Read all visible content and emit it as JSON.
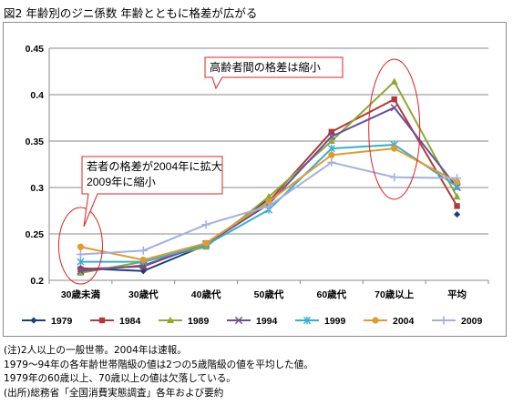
{
  "title": "図2 年齢別のジニ係数 年齢とともに格差が広がる",
  "chart_data": {
    "type": "line",
    "categories": [
      "30歳未満",
      "30歳代",
      "40歳代",
      "50歳代",
      "60歳代",
      "70歳以上",
      "平均"
    ],
    "ylim": [
      0.2,
      0.45
    ],
    "yticks": [
      "0.2",
      "0.25",
      "0.3",
      "0.35",
      "0.4",
      "0.45"
    ],
    "grid": true,
    "legend_position": "bottom",
    "series": [
      {
        "name": "1979",
        "color": "#1f3f7a",
        "marker": "diamond",
        "values": [
          0.213,
          0.21,
          0.238,
          0.288,
          null,
          null,
          0.271
        ]
      },
      {
        "name": "1984",
        "color": "#b03a3a",
        "marker": "square",
        "values": [
          0.212,
          0.215,
          0.24,
          0.285,
          0.36,
          0.395,
          0.28
        ]
      },
      {
        "name": "1989",
        "color": "#8ea832",
        "marker": "triangle",
        "values": [
          0.208,
          0.22,
          0.236,
          0.29,
          0.35,
          0.414,
          0.29
        ]
      },
      {
        "name": "1994",
        "color": "#6a4f9c",
        "marker": "x",
        "values": [
          0.21,
          0.216,
          0.239,
          0.282,
          0.355,
          0.386,
          0.3
        ]
      },
      {
        "name": "1999",
        "color": "#3aaed0",
        "marker": "asterisk",
        "values": [
          0.22,
          0.22,
          0.238,
          0.276,
          0.342,
          0.346,
          0.301
        ]
      },
      {
        "name": "2004",
        "color": "#e39a2a",
        "marker": "circle",
        "values": [
          0.236,
          0.222,
          0.24,
          0.285,
          0.335,
          0.342,
          0.306
        ]
      },
      {
        "name": "2009",
        "color": "#a3b0de",
        "marker": "plus",
        "values": [
          0.228,
          0.232,
          0.26,
          0.28,
          0.327,
          0.311,
          0.31
        ]
      }
    ],
    "annotations": [
      {
        "text": "高齢者間の格差は縮小"
      },
      {
        "text": "若者の格差が2004年に拡大\n2009年に縮小"
      }
    ]
  },
  "notes": [
    "(注)2人以上の一般世帯。2004年は速報。",
    "1979〜94年の各年齢世帯階級の値は2つの5歳階級の値を平均した値。",
    "1979年の60歳以上、70歳以上の値は欠落している。",
    "(出所)総務省「全国消費実態調査」各年および要約"
  ]
}
